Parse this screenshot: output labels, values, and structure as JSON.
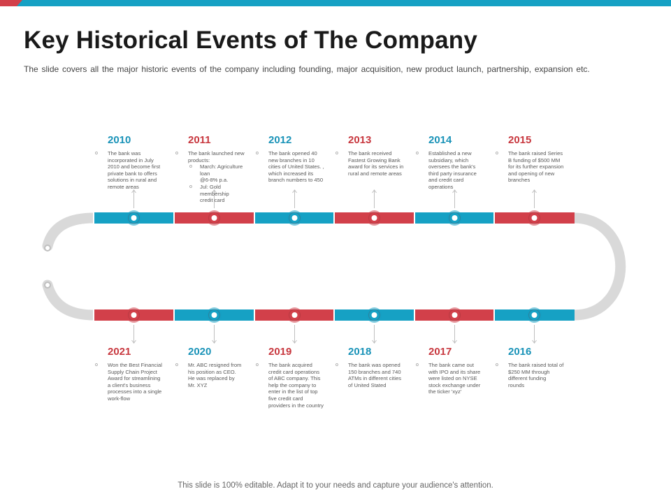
{
  "slide": {
    "title": "Key Historical Events of The Company",
    "subtitle": "The slide covers all the major historic events of the company including founding, major acquisition, new product launch, partnership, expansion etc.",
    "footer": "This slide is 100% editable. Adapt it to your needs and capture your audience's attention."
  },
  "colors": {
    "blue": "#16a1c4",
    "red": "#d2404a",
    "track": "#d9d9d9"
  },
  "events_top": [
    {
      "year": "2010",
      "color": "blue",
      "lines": [
        "The bank was",
        "incorporated in July",
        "2010 and become first",
        "private bank to offers",
        "solutions in rural and",
        "remote areas"
      ]
    },
    {
      "year": "2011",
      "color": "red",
      "lines": [
        "The bank launched new",
        "products:"
      ],
      "sub": [
        {
          "lines": [
            "March: Agriculture loan",
            "@6-8% p.a."
          ]
        },
        {
          "lines": [
            "Jul: Gold membership",
            "credit card"
          ]
        }
      ]
    },
    {
      "year": "2012",
      "color": "blue",
      "lines": [
        "The bank opened 40",
        "new branches in 10",
        "cities of United States. ,",
        "which increased its",
        "branch numbers to 450"
      ]
    },
    {
      "year": "2013",
      "color": "red",
      "lines": [
        "The bank received",
        "Fastest Growing Bank",
        "award for its services in",
        "rural and remote areas"
      ]
    },
    {
      "year": "2014",
      "color": "blue",
      "lines": [
        "Established a new",
        "subsidiary, which",
        "oversees the bank's",
        "third party insurance",
        "and credit card",
        "operations"
      ]
    },
    {
      "year": "2015",
      "color": "red",
      "lines": [
        "The bank raised Series",
        "B funding of $500 MM",
        "for its further expansion",
        "and opening of new",
        "branches"
      ]
    }
  ],
  "events_bottom": [
    {
      "year": "2021",
      "color": "red",
      "lines": [
        "Won the Best Financial",
        "Supply Chain Project",
        "Award for streamlining",
        "a client's business",
        "processes into a single",
        "work-flow"
      ]
    },
    {
      "year": "2020",
      "color": "blue",
      "lines": [
        "Mr. ABC resigned from",
        "his position as CEO.",
        "He was replaced by",
        "Mr. XYZ"
      ]
    },
    {
      "year": "2019",
      "color": "red",
      "lines": [
        "The bank acquired",
        "credit card operations",
        "of ABC company. This",
        "help the company to",
        "enter in the list of top",
        "five credit card",
        "providers in the country"
      ]
    },
    {
      "year": "2018",
      "color": "blue",
      "lines": [
        "The bank was opened",
        "150 branches and 740",
        "ATMs in different cities",
        "of United Stated"
      ]
    },
    {
      "year": "2017",
      "color": "red",
      "lines": [
        "The bank came out",
        "with IPO and its share",
        "were listed on NYSE",
        "stock exchange under",
        "the ticker 'xyz'"
      ]
    },
    {
      "year": "2016",
      "color": "blue",
      "lines": [
        "The bank raised total of",
        "$250 MM through",
        "different funding",
        "rounds"
      ]
    }
  ],
  "icons": {
    "bullet": "circle-bullet-icon",
    "marker": "timeline-node-icon",
    "arrow": "arrow-up-icon"
  }
}
